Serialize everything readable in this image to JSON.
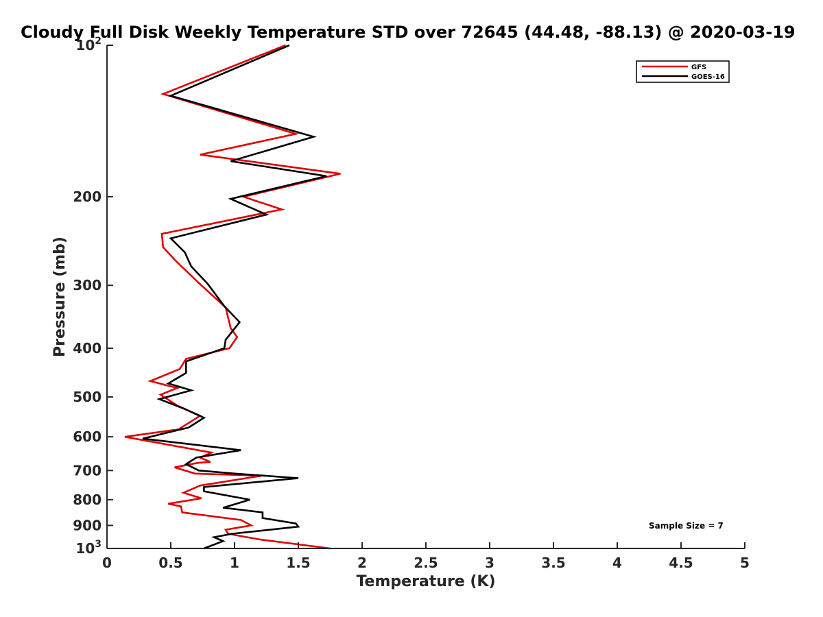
{
  "chart_data": {
    "type": "line",
    "title": "Cloudy Full Disk Weekly Temperature STD over 72645 (44.48, -88.13) @ 2020-03-19",
    "xlabel": "Temperature (K)",
    "ylabel": "Pressure (mb)",
    "xlim": [
      0,
      5
    ],
    "ylim": [
      100,
      1000
    ],
    "y_scale": "log",
    "y_reversed": true,
    "grid": false,
    "legend_position": "top-right",
    "x_ticks": [
      "0",
      "0.5",
      "1",
      "1.5",
      "2",
      "2.5",
      "3",
      "3.5",
      "4",
      "4.5",
      "5"
    ],
    "y_ticks": [
      {
        "value": 100,
        "base": "10",
        "exp": "2"
      },
      {
        "value": 200,
        "label": "200"
      },
      {
        "value": 300,
        "label": "300"
      },
      {
        "value": 400,
        "label": "400"
      },
      {
        "value": 500,
        "label": "500"
      },
      {
        "value": 600,
        "label": "600"
      },
      {
        "value": 700,
        "label": "700"
      },
      {
        "value": 800,
        "label": "800"
      },
      {
        "value": 900,
        "label": "900"
      },
      {
        "value": 1000,
        "base": "10",
        "exp": "3"
      }
    ],
    "annotation": "Sample Size = 7",
    "series": [
      {
        "name": "GFS",
        "color": "#e00000",
        "points": [
          [
            1.4,
            100
          ],
          [
            0.44,
            125
          ],
          [
            1.48,
            150
          ],
          [
            0.73,
            165
          ],
          [
            1.83,
            180
          ],
          [
            1.07,
            200
          ],
          [
            1.37,
            212
          ],
          [
            0.43,
            237
          ],
          [
            0.44,
            252
          ],
          [
            0.55,
            270
          ],
          [
            0.74,
            300
          ],
          [
            0.93,
            332
          ],
          [
            0.97,
            365
          ],
          [
            1.02,
            380
          ],
          [
            0.96,
            400
          ],
          [
            0.62,
            420
          ],
          [
            0.57,
            440
          ],
          [
            0.34,
            465
          ],
          [
            0.55,
            480
          ],
          [
            0.42,
            495
          ],
          [
            0.55,
            520
          ],
          [
            0.73,
            545
          ],
          [
            0.56,
            580
          ],
          [
            0.14,
            600
          ],
          [
            0.82,
            645
          ],
          [
            0.73,
            660
          ],
          [
            0.81,
            673
          ],
          [
            0.71,
            676
          ],
          [
            0.53,
            690
          ],
          [
            0.69,
            710
          ],
          [
            1.21,
            717
          ],
          [
            0.73,
            750
          ],
          [
            0.6,
            775
          ],
          [
            0.74,
            795
          ],
          [
            0.48,
            815
          ],
          [
            0.58,
            825
          ],
          [
            0.59,
            848
          ],
          [
            1.05,
            878
          ],
          [
            1.13,
            900
          ],
          [
            0.93,
            918
          ],
          [
            0.95,
            935
          ],
          [
            1.2,
            960
          ],
          [
            1.75,
            1000
          ]
        ]
      },
      {
        "name": "GOES-16",
        "color": "#000000",
        "points": [
          [
            1.43,
            100
          ],
          [
            0.5,
            126
          ],
          [
            1.62,
            152
          ],
          [
            0.97,
            170
          ],
          [
            1.72,
            182
          ],
          [
            0.97,
            202
          ],
          [
            1.25,
            217
          ],
          [
            0.5,
            242
          ],
          [
            0.61,
            258
          ],
          [
            0.66,
            275
          ],
          [
            0.79,
            298
          ],
          [
            0.92,
            330
          ],
          [
            1.04,
            355
          ],
          [
            0.93,
            385
          ],
          [
            0.92,
            400
          ],
          [
            0.62,
            425
          ],
          [
            0.62,
            448
          ],
          [
            0.48,
            470
          ],
          [
            0.66,
            485
          ],
          [
            0.41,
            505
          ],
          [
            0.6,
            527
          ],
          [
            0.76,
            550
          ],
          [
            0.64,
            575
          ],
          [
            0.28,
            605
          ],
          [
            1.05,
            638
          ],
          [
            0.7,
            660
          ],
          [
            0.62,
            680
          ],
          [
            0.72,
            700
          ],
          [
            1.0,
            710
          ],
          [
            1.5,
            725
          ],
          [
            0.76,
            755
          ],
          [
            0.76,
            770
          ],
          [
            1.12,
            800
          ],
          [
            0.91,
            830
          ],
          [
            1.22,
            848
          ],
          [
            1.22,
            870
          ],
          [
            1.48,
            892
          ],
          [
            1.5,
            905
          ],
          [
            0.98,
            935
          ],
          [
            0.84,
            950
          ],
          [
            0.91,
            967
          ],
          [
            0.76,
            1000
          ]
        ]
      }
    ]
  }
}
